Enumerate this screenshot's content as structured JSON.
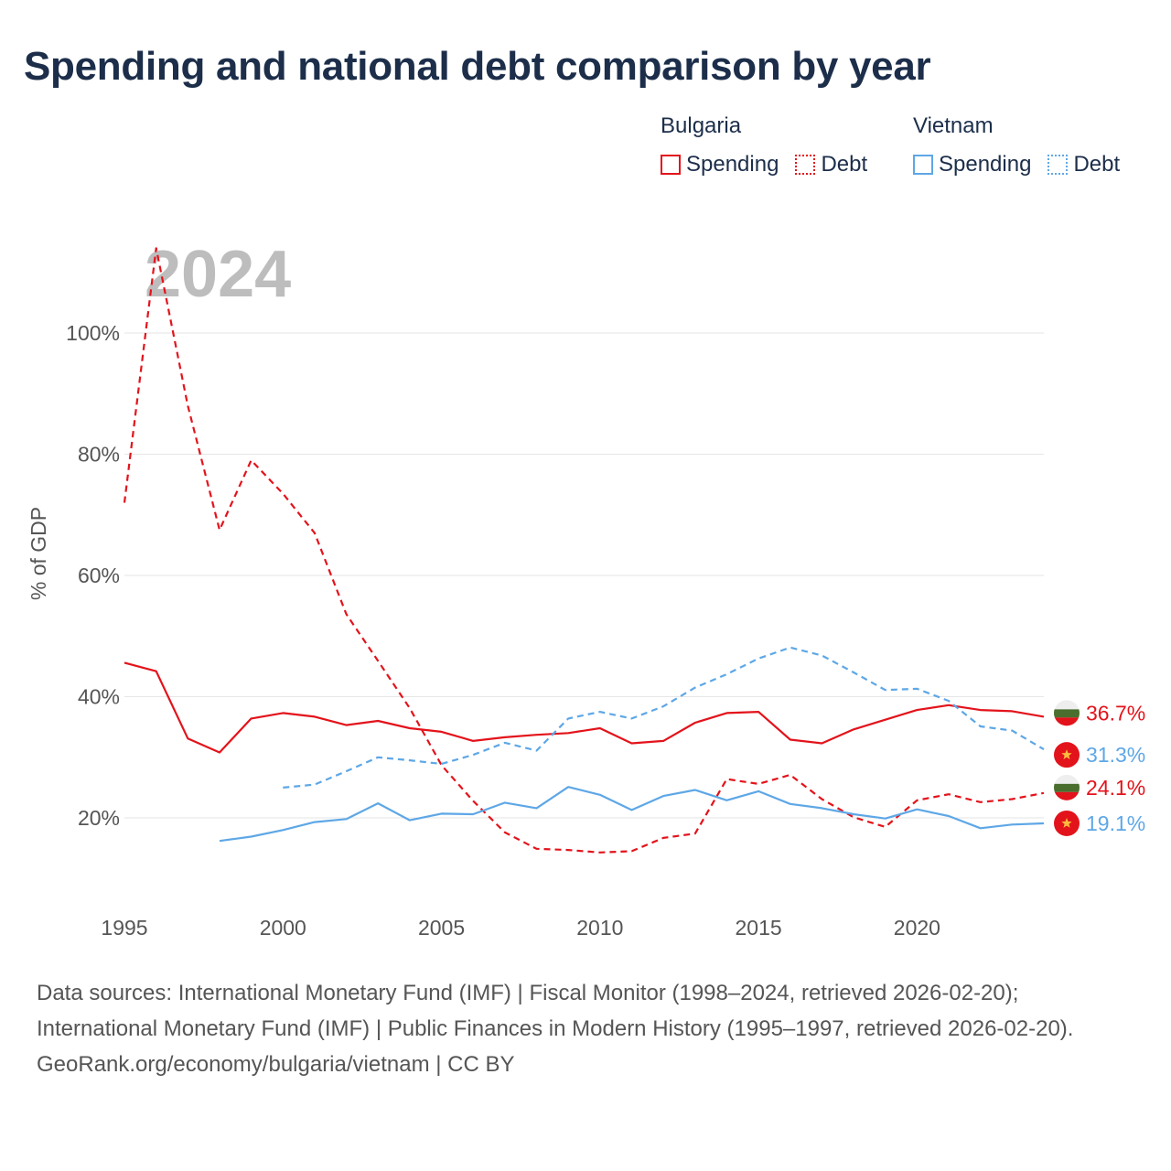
{
  "title": "Spending and national debt comparison by year",
  "legend": {
    "groups": [
      {
        "country": "Bulgaria",
        "color": "#e3131b",
        "items": [
          {
            "label": "Spending",
            "style": "solid"
          },
          {
            "label": "Debt",
            "style": "dotted"
          }
        ]
      },
      {
        "country": "Vietnam",
        "color": "#5ea7e6",
        "items": [
          {
            "label": "Spending",
            "style": "solid"
          },
          {
            "label": "Debt",
            "style": "dotted"
          }
        ]
      }
    ]
  },
  "chart_data": {
    "type": "line",
    "title": "Spending and national debt comparison by year",
    "year_watermark": "2024",
    "ylabel": "% of GDP",
    "xlabel": "",
    "xlim": [
      1995,
      2024
    ],
    "ylim": [
      8,
      110
    ],
    "x_ticks": [
      1995,
      2000,
      2005,
      2010,
      2015,
      2020
    ],
    "x_tick_labels": [
      "1995",
      "2000",
      "2005",
      "2010",
      "2015",
      "2020"
    ],
    "y_ticks": [
      20,
      40,
      60,
      80,
      100
    ],
    "y_tick_labels": [
      "20%",
      "40%",
      "60%",
      "80%",
      "100%"
    ],
    "grid": true,
    "series": [
      {
        "name": "Bulgaria Spending",
        "country": "Bulgaria",
        "metric": "Spending",
        "color": "#e3131b",
        "dash": "solid",
        "end_label": "36.7%",
        "x": [
          1995,
          1996,
          1997,
          1998,
          1999,
          2000,
          2001,
          2002,
          2003,
          2004,
          2005,
          2006,
          2007,
          2008,
          2009,
          2010,
          2011,
          2012,
          2013,
          2014,
          2015,
          2016,
          2017,
          2018,
          2019,
          2020,
          2021,
          2022,
          2023,
          2024
        ],
        "values": [
          45.6,
          44.2,
          33.1,
          30.8,
          36.4,
          37.3,
          36.7,
          35.3,
          36.0,
          34.8,
          34.2,
          32.7,
          33.3,
          33.7,
          34.0,
          34.8,
          32.3,
          32.7,
          35.7,
          37.3,
          37.5,
          32.9,
          32.3,
          34.6,
          36.2,
          37.8,
          38.6,
          37.8,
          37.6,
          36.7
        ]
      },
      {
        "name": "Bulgaria Debt",
        "country": "Bulgaria",
        "metric": "Debt",
        "color": "#e3131b",
        "dash": "dashed",
        "end_label": "24.1%",
        "x": [
          1995,
          1996,
          1997,
          1998,
          1999,
          2000,
          2001,
          2002,
          2003,
          2004,
          2005,
          2006,
          2007,
          2008,
          2009,
          2010,
          2011,
          2012,
          2013,
          2014,
          2015,
          2016,
          2017,
          2018,
          2019,
          2020,
          2021,
          2022,
          2023,
          2024
        ],
        "values": [
          72.0,
          114.0,
          88.0,
          67.5,
          79.0,
          73.5,
          67.0,
          53.6,
          45.9,
          38.1,
          28.7,
          22.8,
          17.6,
          14.9,
          14.7,
          14.3,
          14.5,
          16.7,
          17.4,
          26.4,
          25.6,
          27.1,
          23.1,
          20.1,
          18.5,
          22.9,
          23.9,
          22.6,
          23.1,
          24.1
        ]
      },
      {
        "name": "Vietnam Spending",
        "country": "Vietnam",
        "metric": "Spending",
        "color": "#5ea7e6",
        "dash": "solid",
        "end_label": "19.1%",
        "x": [
          1998,
          1999,
          2000,
          2001,
          2002,
          2003,
          2004,
          2005,
          2006,
          2007,
          2008,
          2009,
          2010,
          2011,
          2012,
          2013,
          2014,
          2015,
          2016,
          2017,
          2018,
          2019,
          2020,
          2021,
          2022,
          2023,
          2024
        ],
        "values": [
          16.2,
          16.9,
          18.0,
          19.3,
          19.8,
          22.4,
          19.6,
          20.7,
          20.6,
          22.5,
          21.6,
          25.1,
          23.8,
          21.3,
          23.6,
          24.6,
          22.9,
          24.4,
          22.3,
          21.6,
          20.6,
          19.9,
          21.4,
          20.3,
          18.3,
          18.9,
          19.1
        ]
      },
      {
        "name": "Vietnam Debt",
        "country": "Vietnam",
        "metric": "Debt",
        "color": "#5ea7e6",
        "dash": "dashed",
        "end_label": "31.3%",
        "x": [
          2000,
          2001,
          2002,
          2003,
          2004,
          2005,
          2006,
          2007,
          2008,
          2009,
          2010,
          2011,
          2012,
          2013,
          2014,
          2015,
          2016,
          2017,
          2018,
          2019,
          2020,
          2021,
          2022,
          2023,
          2024
        ],
        "values": [
          25.0,
          25.5,
          27.7,
          30.0,
          29.5,
          28.9,
          30.4,
          32.4,
          31.1,
          36.4,
          37.5,
          36.4,
          38.4,
          41.5,
          43.7,
          46.3,
          48.1,
          46.8,
          44.0,
          41.1,
          41.3,
          39.3,
          35.1,
          34.4,
          31.3
        ]
      }
    ]
  },
  "footer": {
    "sources": "Data sources: International Monetary Fund (IMF) | Fiscal Monitor (1998–2024, retrieved 2026-02-20); International Monetary Fund (IMF) | Public Finances in Modern History (1995–1997, retrieved 2026-02-20).",
    "credit": "GeoRank.org/economy/bulgaria/vietnam | CC BY"
  }
}
